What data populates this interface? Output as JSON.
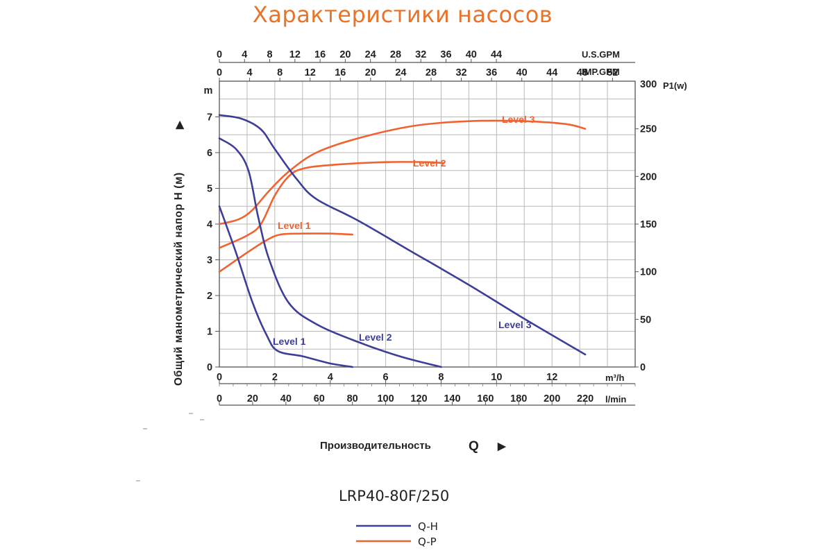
{
  "title": "Характеристики насосов",
  "chart_data": {
    "type": "line",
    "title": "Характеристики насосов",
    "model": "LRP40-80F/250",
    "ylabel": "Общий манометрический напор H (м)",
    "ylabel_arrow": "▶",
    "y_unit": "m",
    "y2label": "P1(w)",
    "xlabel": "Производительность",
    "xlabel_symbol": "Q",
    "xlabel_arrow": "▶",
    "xlim_m3h": [
      0,
      15
    ],
    "ylim_m": [
      0,
      8
    ],
    "y2lim_w": [
      0,
      300
    ],
    "grid": true,
    "axes": {
      "m3h": {
        "unit": "m³/h",
        "ticks": [
          0,
          2,
          4,
          6,
          8,
          10,
          12
        ]
      },
      "lmin": {
        "unit": "l/min",
        "ticks": [
          0,
          20,
          40,
          60,
          80,
          100,
          120,
          140,
          160,
          180,
          200,
          220
        ]
      },
      "usgpm": {
        "unit": "U.S.GPM",
        "ticks": [
          0,
          4,
          8,
          12,
          16,
          20,
          24,
          28,
          32,
          36,
          40,
          44
        ]
      },
      "impgpm": {
        "unit": "IMP.GPM",
        "ticks": [
          0,
          4,
          8,
          12,
          16,
          20,
          24,
          28,
          32,
          36,
          40,
          44,
          48,
          52
        ]
      },
      "head": {
        "unit": "m",
        "ticks": [
          0,
          1,
          2,
          3,
          4,
          5,
          6,
          7
        ]
      },
      "power": {
        "unit": "P1(w)",
        "ticks": [
          0,
          50,
          100,
          150,
          200,
          250,
          300
        ]
      }
    },
    "colors": {
      "qh": "#3d3d9a",
      "qp": "#f0622f",
      "grid": "#b9b9b9"
    },
    "qh_series": [
      {
        "name": "Level 1",
        "x": [
          0,
          0.6,
          1.2,
          1.7,
          2.1,
          3.0,
          4.0,
          4.8
        ],
        "y": [
          4.5,
          3.2,
          1.8,
          0.9,
          0.45,
          0.3,
          0.1,
          0.0
        ]
      },
      {
        "name": "Level 2",
        "x": [
          0,
          0.6,
          1.05,
          1.4,
          1.8,
          2.5,
          3.5,
          5.0,
          6.5,
          8.0
        ],
        "y": [
          6.4,
          6.1,
          5.5,
          4.2,
          3.0,
          1.8,
          1.2,
          0.7,
          0.3,
          0.0
        ]
      },
      {
        "name": "Level 3",
        "x": [
          0,
          0.8,
          1.5,
          2.0,
          2.8,
          3.5,
          5.0,
          7.0,
          9.0,
          11.0,
          13.2
        ],
        "y": [
          7.05,
          6.95,
          6.65,
          6.1,
          5.25,
          4.7,
          4.1,
          3.2,
          2.3,
          1.35,
          0.35
        ]
      }
    ],
    "qp_series": [
      {
        "name": "Level 1",
        "x": [
          0,
          1.0,
          1.7,
          2.2,
          3.0,
          4.0,
          4.8
        ],
        "y": [
          100,
          120,
          133,
          139,
          140,
          140,
          139
        ]
      },
      {
        "name": "Level 2",
        "x": [
          0,
          1.0,
          1.5,
          2.0,
          2.5,
          3.0,
          4.0,
          6.0,
          7.5,
          8.1
        ],
        "y": [
          125,
          138,
          150,
          180,
          200,
          208,
          212,
          215,
          215,
          214
        ]
      },
      {
        "name": "Level 3",
        "x": [
          0,
          0.7,
          1.2,
          1.8,
          2.5,
          3.5,
          5.0,
          7.0,
          9.0,
          11.0,
          12.5,
          13.2
        ],
        "y": [
          150,
          155,
          165,
          185,
          205,
          225,
          240,
          253,
          258,
          258,
          255,
          250
        ]
      }
    ],
    "legend": [
      {
        "label": "Q-H",
        "color": "#3d3d9a"
      },
      {
        "label": "Q-P",
        "color": "#f0622f"
      }
    ]
  }
}
